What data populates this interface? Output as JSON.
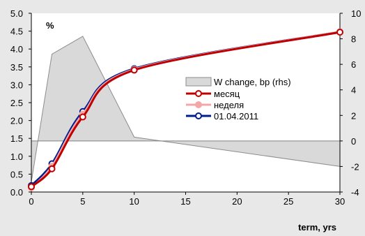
{
  "chart_data": {
    "type": "line",
    "title": "",
    "left_unit_label": "%",
    "xlabel": "term, yrs",
    "xlim": [
      0,
      30
    ],
    "ylim_left": [
      0,
      5
    ],
    "ylim_right": [
      -4,
      10
    ],
    "x_ticks": [
      "0",
      "5",
      "10",
      "15",
      "20",
      "25",
      "30"
    ],
    "y_left_ticks": [
      "0.0",
      "0.5",
      "1.0",
      "1.5",
      "2.0",
      "2.5",
      "3.0",
      "3.5",
      "4.0",
      "4.5",
      "5.0"
    ],
    "y_right_ticks": [
      "-4",
      "-2",
      "0",
      "2",
      "4",
      "6",
      "8",
      "10"
    ],
    "area_series": {
      "name": "W change, bp (rhs)",
      "axis": "right",
      "color": "#d9d9d9",
      "stroke": "#8c8c8c",
      "x": [
        0,
        2,
        5,
        10,
        30
      ],
      "y": [
        -3.2,
        6.8,
        8.2,
        0.3,
        -2.0
      ]
    },
    "series": [
      {
        "name": "месяц",
        "axis": "left",
        "color": "#c00000",
        "marker_fill": "#ffffff",
        "x": [
          0,
          2,
          5,
          10,
          30
        ],
        "y": [
          0.15,
          0.65,
          2.1,
          3.41,
          4.47
        ]
      },
      {
        "name": "неделя",
        "axis": "left",
        "color": "#f4a7a7",
        "marker_fill": "#f4a7a7",
        "x": [
          0,
          2,
          5,
          10,
          30
        ],
        "y": [
          0.12,
          0.72,
          2.18,
          3.43,
          4.48
        ]
      },
      {
        "name": "01.04.2011",
        "axis": "left",
        "color": "#001f8c",
        "marker_fill": "#ffffff",
        "x": [
          0,
          2,
          5,
          10,
          30
        ],
        "y": [
          0.18,
          0.79,
          2.25,
          3.45,
          4.48
        ]
      }
    ],
    "grid": false,
    "legend_position": "center-right"
  }
}
